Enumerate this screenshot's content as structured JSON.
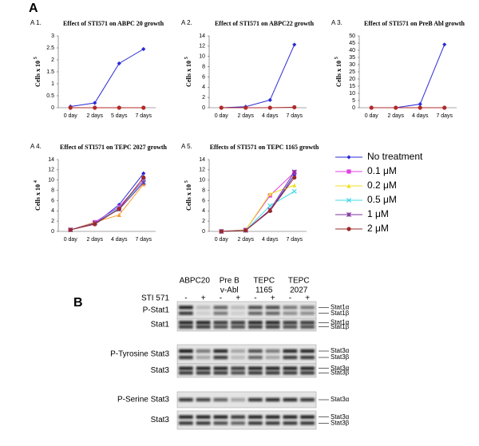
{
  "figure": {
    "label_a": "A",
    "label_b": "B"
  },
  "chart_data": [
    {
      "type": "line",
      "panel": "A 1.",
      "title": "Effect of STI571 on ABPC 20 growth",
      "y_label": "Cells x 10",
      "y_label_exponent": "5",
      "categories": [
        "0 day",
        "2 days",
        "5 days",
        "7 days"
      ],
      "ylim": [
        0,
        3
      ],
      "yticks": [
        0,
        0.5,
        1,
        1.5,
        2,
        2.5,
        3
      ],
      "series": [
        {
          "color": "#2b2bd6",
          "marker": "diamond",
          "values": [
            0.05,
            0.2,
            1.85,
            2.45
          ]
        },
        {
          "color": "#b02a2a",
          "marker": "circle",
          "values": [
            0,
            0,
            0,
            0
          ]
        }
      ]
    },
    {
      "type": "line",
      "panel": "A 2.",
      "title": "Effect of STI571 on ABPC22 growth",
      "y_label": "Cells x 10",
      "y_label_exponent": "5",
      "categories": [
        "0 day",
        "2 days",
        "4 days",
        "7 days"
      ],
      "ylim": [
        0,
        14
      ],
      "yticks": [
        0,
        2,
        4,
        6,
        8,
        10,
        12,
        14
      ],
      "series": [
        {
          "color": "#2b2bd6",
          "marker": "diamond",
          "values": [
            0,
            0.2,
            1.5,
            12.3
          ]
        },
        {
          "color": "#b02a2a",
          "marker": "circle",
          "values": [
            0,
            0,
            0,
            0.1
          ]
        }
      ]
    },
    {
      "type": "line",
      "panel": "A 3.",
      "title": "Effect of STI571 on PreB Abl growth",
      "y_label": "Cells x 10",
      "y_label_exponent": "5",
      "categories": [
        "0 day",
        "2 days",
        "4 days",
        "7 days"
      ],
      "ylim": [
        0,
        50
      ],
      "yticks": [
        0,
        5,
        10,
        15,
        20,
        25,
        30,
        35,
        40,
        45,
        50
      ],
      "series": [
        {
          "color": "#2b2bd6",
          "marker": "diamond",
          "values": [
            0,
            0,
            2.5,
            44
          ]
        },
        {
          "color": "#b02a2a",
          "marker": "circle",
          "values": [
            0,
            0,
            0,
            0
          ]
        }
      ]
    },
    {
      "type": "line",
      "panel": "A 4.",
      "title": "Effect of STI571 on TEPC 2027 growth",
      "y_label": "Cells x 10",
      "y_label_exponent": "4",
      "categories": [
        "0 day",
        "2 days",
        "4 days",
        "7 days"
      ],
      "ylim": [
        0,
        14
      ],
      "yticks": [
        0,
        2,
        4,
        6,
        8,
        10,
        12,
        14
      ],
      "series": [
        {
          "color": "#2b2bd6",
          "marker": "diamond",
          "values": [
            0.3,
            1.5,
            5.2,
            11.3
          ]
        },
        {
          "color": "#e040e0",
          "marker": "square",
          "values": [
            0.3,
            1.8,
            4.8,
            10
          ]
        },
        {
          "color": "#f5a030",
          "marker": "triangle",
          "values": [
            0.3,
            1.8,
            3.2,
            9.2
          ]
        },
        {
          "color": "#40d8e8",
          "marker": "x",
          "values": [
            0.3,
            1.6,
            4.6,
            9.7
          ]
        },
        {
          "color": "#8030a0",
          "marker": "star",
          "values": [
            0.3,
            1.6,
            4.3,
            9.5
          ]
        },
        {
          "color": "#9a2a2a",
          "marker": "circle",
          "values": [
            0.3,
            1.4,
            4.4,
            10.5
          ]
        }
      ]
    },
    {
      "type": "line",
      "panel": "A 5.",
      "title": "Effects of STI571 on TEPC 1165 growth",
      "y_label": "Cells x 10",
      "y_label_exponent": "5",
      "categories": [
        "0 day",
        "2 days",
        "4 days",
        "7 days"
      ],
      "ylim": [
        0,
        14
      ],
      "yticks": [
        0,
        2,
        4,
        6,
        8,
        10,
        12,
        14
      ],
      "legend": "right",
      "series": [
        {
          "name": "No treatment",
          "color": "#2b2bd6",
          "marker": "diamond",
          "values": [
            0,
            0.2,
            4,
            11
          ]
        },
        {
          "name": "0.1 μM",
          "color": "#e040e0",
          "marker": "square",
          "values": [
            0,
            0.3,
            7,
            11.5
          ]
        },
        {
          "name": "0.2 μM",
          "color": "#f0e020",
          "marker": "triangle",
          "values": [
            0,
            0.3,
            7.3,
            9
          ]
        },
        {
          "name": "0.5 μM",
          "color": "#40d8e8",
          "marker": "x",
          "values": [
            0,
            0.2,
            5,
            7.8
          ]
        },
        {
          "name": "1 μM",
          "color": "#8030a0",
          "marker": "star",
          "values": [
            0,
            0.2,
            4.2,
            11.6
          ]
        },
        {
          "name": "2 μM",
          "color": "#9a2a2a",
          "marker": "circle",
          "values": [
            0,
            0.2,
            4,
            10.5
          ]
        }
      ]
    }
  ],
  "blot": {
    "columns": [
      [
        "ABPC20"
      ],
      [
        "Pre B",
        "v-Abl"
      ],
      [
        "TEPC",
        "1165"
      ],
      [
        "TEPC",
        "2027"
      ]
    ],
    "treatment_label": "STI 571",
    "treatment_signs": [
      "-",
      "+",
      "-",
      "+",
      "-",
      "+",
      "-",
      "+"
    ],
    "rows": [
      {
        "label": "P-Stat1",
        "bands": [
          "Stat1α",
          "Stat1β"
        ]
      },
      {
        "label": "Stat1",
        "bands": [
          "Stat1α",
          "Stat1β"
        ]
      },
      {
        "label": "P-Tyrosine Stat3",
        "bands": [
          "Stat3α",
          "Stat3β"
        ]
      },
      {
        "label": "Stat3",
        "bands": [
          "Stat3α",
          "Stat3β"
        ]
      },
      {
        "label": "P-Serine Stat3",
        "bands": [
          "Stat3α"
        ]
      },
      {
        "label": "Stat3",
        "bands": [
          "Stat3α",
          "Stat3β"
        ]
      }
    ]
  }
}
